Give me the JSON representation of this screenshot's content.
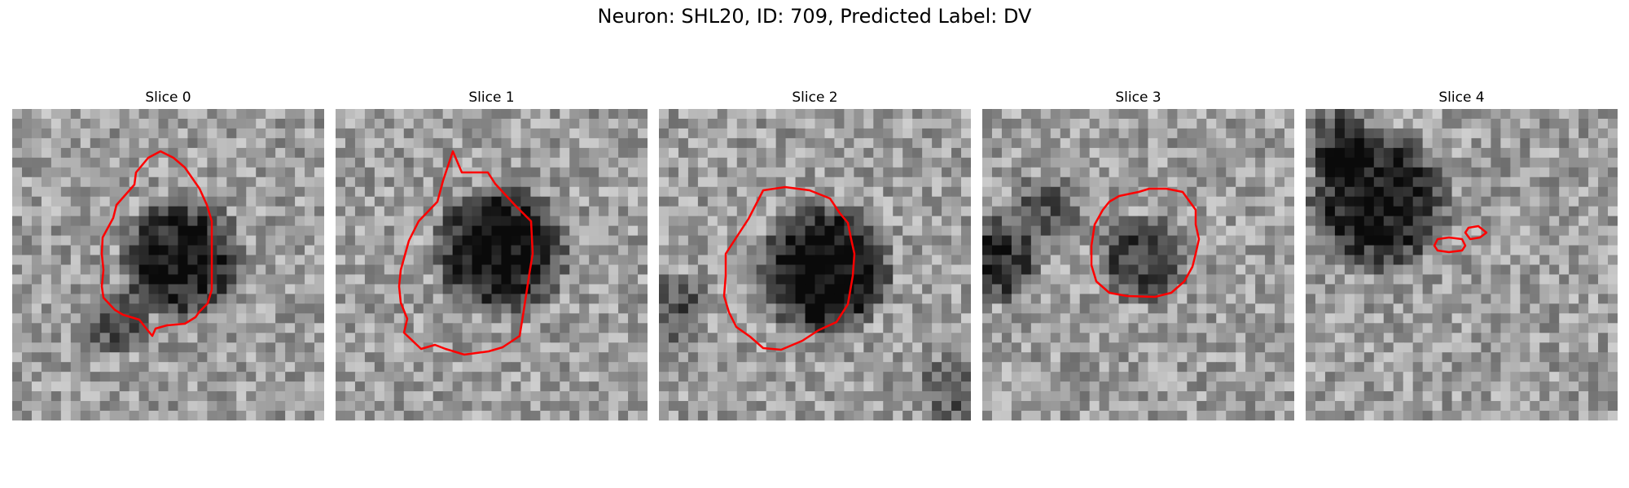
{
  "figure": {
    "title": "Neuron: SHL20, ID: 709, Predicted Label: DV"
  },
  "panels": [
    {
      "title": "Slice 0"
    },
    {
      "title": "Slice 1"
    },
    {
      "title": "Slice 2"
    },
    {
      "title": "Slice 3"
    },
    {
      "title": "Slice 4"
    }
  ],
  "colors": {
    "contour": "#ff0000",
    "background": "#ffffff"
  }
}
